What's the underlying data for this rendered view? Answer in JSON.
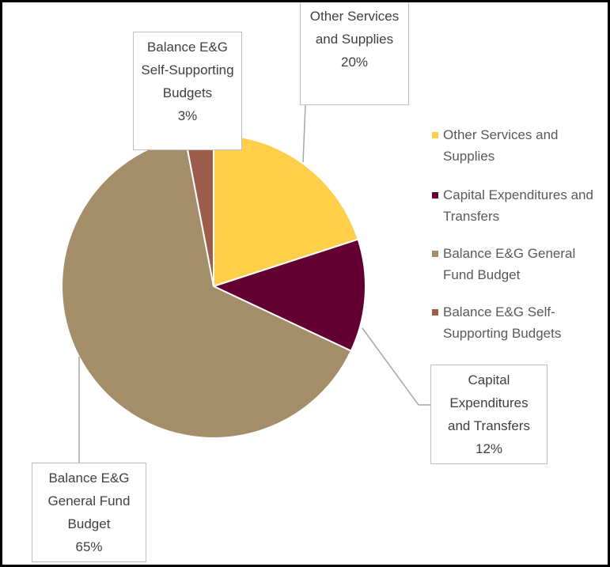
{
  "chart_data": {
    "type": "pie",
    "categories": [
      "Other Services and Supplies",
      "Capital Expenditures and Transfers",
      "Balance E&G General Fund Budget",
      "Balance E&G Self-Supporting Budgets"
    ],
    "values": [
      20,
      12,
      65,
      3
    ],
    "value_labels": [
      "20%",
      "12%",
      "65%",
      "3%"
    ],
    "colors": [
      "#FFCF4A",
      "#630031",
      "#A38E69",
      "#9E5C4C"
    ],
    "legend": "right"
  }
}
